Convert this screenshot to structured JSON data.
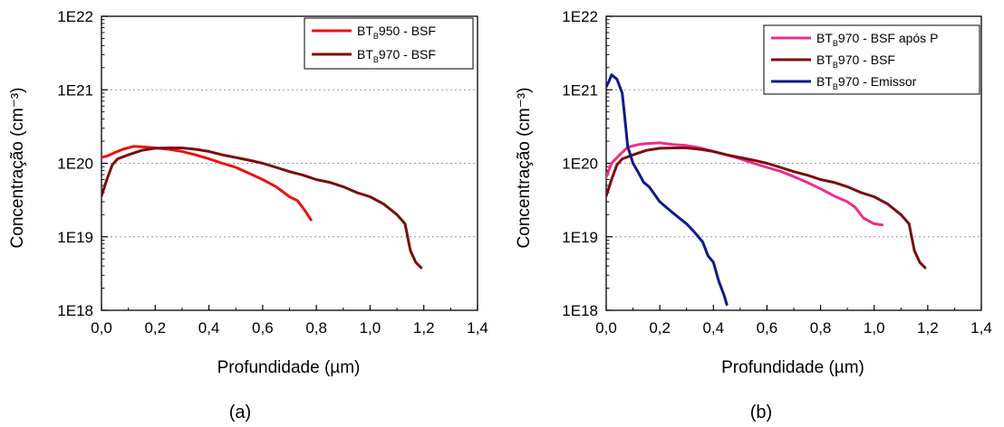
{
  "colors": {
    "bt950_bsf": "#ee1111",
    "bt970_bsf": "#7a0d10",
    "bt970_bsf_apos_p": "#ee2d8c",
    "bt970_emissor": "#0f1a8c",
    "grid": "#999999"
  },
  "chart_data": [
    {
      "type": "line",
      "panel_label": "(a)",
      "xlabel": "Profundidade (µm)",
      "ylabel": "Concentração (cm⁻³)",
      "xlim": [
        0,
        1.4
      ],
      "ylim": [
        1e+18,
        1e+22
      ],
      "yscale": "log",
      "grid": "horizontal dotted",
      "legend_position": "top-right",
      "x_ticks": [
        "0,0",
        "0,2",
        "0,4",
        "0,6",
        "0,8",
        "1,0",
        "1,2",
        "1,4"
      ],
      "y_ticks": [
        "1E18",
        "1E19",
        "1E20",
        "1E21",
        "1E22"
      ],
      "series": [
        {
          "name": "BT_B950 - BSF",
          "legend_main": "BT",
          "legend_sub": "B",
          "legend_rest": "950 - BSF",
          "color_key": "bt950_bsf",
          "points": [
            [
              0.0,
              1.2e+20
            ],
            [
              0.02,
              1.25e+20
            ],
            [
              0.05,
              1.4e+20
            ],
            [
              0.08,
              1.55e+20
            ],
            [
              0.12,
              1.7e+20
            ],
            [
              0.15,
              1.68e+20
            ],
            [
              0.2,
              1.62e+20
            ],
            [
              0.25,
              1.55e+20
            ],
            [
              0.3,
              1.45e+20
            ],
            [
              0.35,
              1.3e+20
            ],
            [
              0.4,
              1.15e+20
            ],
            [
              0.45,
              1e+20
            ],
            [
              0.5,
              8.8e+19
            ],
            [
              0.55,
              7.3e+19
            ],
            [
              0.6,
              6e+19
            ],
            [
              0.65,
              4.8e+19
            ],
            [
              0.7,
              3.5e+19
            ],
            [
              0.73,
              3.1e+19
            ],
            [
              0.76,
              2.2e+19
            ],
            [
              0.78,
              1.7e+19
            ]
          ]
        },
        {
          "name": "BT_B970 - BSF",
          "legend_main": "BT",
          "legend_sub": "B",
          "legend_rest": "970 - BSF",
          "color_key": "bt970_bsf",
          "points": [
            [
              0.0,
              3.6e+19
            ],
            [
              0.02,
              6e+19
            ],
            [
              0.04,
              9.5e+19
            ],
            [
              0.06,
              1.15e+20
            ],
            [
              0.1,
              1.3e+20
            ],
            [
              0.15,
              1.5e+20
            ],
            [
              0.2,
              1.6e+20
            ],
            [
              0.25,
              1.62e+20
            ],
            [
              0.3,
              1.62e+20
            ],
            [
              0.35,
              1.55e+20
            ],
            [
              0.4,
              1.45e+20
            ],
            [
              0.45,
              1.3e+20
            ],
            [
              0.5,
              1.2e+20
            ],
            [
              0.55,
              1.1e+20
            ],
            [
              0.6,
              1e+20
            ],
            [
              0.65,
              8.8e+19
            ],
            [
              0.7,
              7.7e+19
            ],
            [
              0.75,
              6.9e+19
            ],
            [
              0.8,
              6e+19
            ],
            [
              0.85,
              5.5e+19
            ],
            [
              0.9,
              4.8e+19
            ],
            [
              0.95,
              4e+19
            ],
            [
              1.0,
              3.5e+19
            ],
            [
              1.05,
              2.8e+19
            ],
            [
              1.1,
              2e+19
            ],
            [
              1.13,
              1.5e+19
            ],
            [
              1.15,
              6.5e+18
            ],
            [
              1.17,
              4.5e+18
            ],
            [
              1.19,
              3.8e+18
            ]
          ]
        }
      ]
    },
    {
      "type": "line",
      "panel_label": "(b)",
      "xlabel": "Profundidade (µm)",
      "ylabel": "Concentração (cm⁻³)",
      "xlim": [
        0,
        1.4
      ],
      "ylim": [
        1e+18,
        1e+22
      ],
      "yscale": "log",
      "grid": "horizontal dotted",
      "legend_position": "top-right",
      "x_ticks": [
        "0,0",
        "0,2",
        "0,4",
        "0,6",
        "0,8",
        "1,0",
        "1,2",
        "1,4"
      ],
      "y_ticks": [
        "1E18",
        "1E19",
        "1E20",
        "1E21",
        "1E22"
      ],
      "series": [
        {
          "name": "BT_B970 - BSF após P",
          "legend_main": "BT",
          "legend_sub": "B",
          "legend_rest": "970 - BSF após P",
          "color_key": "bt970_bsf_apos_p",
          "points": [
            [
              0.0,
              6.5e+19
            ],
            [
              0.02,
              1e+20
            ],
            [
              0.05,
              1.3e+20
            ],
            [
              0.08,
              1.65e+20
            ],
            [
              0.12,
              1.8e+20
            ],
            [
              0.15,
              1.85e+20
            ],
            [
              0.2,
              1.9e+20
            ],
            [
              0.25,
              1.8e+20
            ],
            [
              0.3,
              1.75e+20
            ],
            [
              0.35,
              1.62e+20
            ],
            [
              0.4,
              1.45e+20
            ],
            [
              0.45,
              1.3e+20
            ],
            [
              0.5,
              1.15e+20
            ],
            [
              0.55,
              1e+20
            ],
            [
              0.6,
              8.8e+19
            ],
            [
              0.65,
              7.8e+19
            ],
            [
              0.7,
              6.6e+19
            ],
            [
              0.75,
              5.5e+19
            ],
            [
              0.8,
              4.5e+19
            ],
            [
              0.85,
              3.6e+19
            ],
            [
              0.9,
              3e+19
            ],
            [
              0.93,
              2.5e+19
            ],
            [
              0.96,
              1.8e+19
            ],
            [
              1.0,
              1.5e+19
            ],
            [
              1.03,
              1.45e+19
            ]
          ]
        },
        {
          "name": "BT_B970 - BSF",
          "legend_main": "BT",
          "legend_sub": "B",
          "legend_rest": "970 - BSF",
          "color_key": "bt970_bsf",
          "points": [
            [
              0.0,
              3.6e+19
            ],
            [
              0.02,
              6e+19
            ],
            [
              0.04,
              9.5e+19
            ],
            [
              0.06,
              1.15e+20
            ],
            [
              0.1,
              1.3e+20
            ],
            [
              0.15,
              1.5e+20
            ],
            [
              0.2,
              1.6e+20
            ],
            [
              0.25,
              1.62e+20
            ],
            [
              0.3,
              1.62e+20
            ],
            [
              0.35,
              1.55e+20
            ],
            [
              0.4,
              1.45e+20
            ],
            [
              0.45,
              1.3e+20
            ],
            [
              0.5,
              1.2e+20
            ],
            [
              0.55,
              1.1e+20
            ],
            [
              0.6,
              1e+20
            ],
            [
              0.65,
              8.8e+19
            ],
            [
              0.7,
              7.7e+19
            ],
            [
              0.75,
              6.9e+19
            ],
            [
              0.8,
              6e+19
            ],
            [
              0.85,
              5.5e+19
            ],
            [
              0.9,
              4.8e+19
            ],
            [
              0.95,
              4e+19
            ],
            [
              1.0,
              3.5e+19
            ],
            [
              1.05,
              2.8e+19
            ],
            [
              1.1,
              2e+19
            ],
            [
              1.13,
              1.5e+19
            ],
            [
              1.15,
              6.5e+18
            ],
            [
              1.17,
              4.5e+18
            ],
            [
              1.19,
              3.8e+18
            ]
          ]
        },
        {
          "name": "BT_B970 - Emissor",
          "legend_main": "BT",
          "legend_sub": "B",
          "legend_rest": "970 - Emissor",
          "color_key": "bt970_emissor",
          "points": [
            [
              0.0,
              1.1e+21
            ],
            [
              0.01,
              1.3e+21
            ],
            [
              0.02,
              1.6e+21
            ],
            [
              0.04,
              1.4e+21
            ],
            [
              0.06,
              9e+20
            ],
            [
              0.07,
              4e+20
            ],
            [
              0.08,
              1.7e+20
            ],
            [
              0.1,
              1e+20
            ],
            [
              0.12,
              7.5e+19
            ],
            [
              0.14,
              5.5e+19
            ],
            [
              0.16,
              4.8e+19
            ],
            [
              0.18,
              3.8e+19
            ],
            [
              0.2,
              3e+19
            ],
            [
              0.25,
              2.1e+19
            ],
            [
              0.3,
              1.5e+19
            ],
            [
              0.33,
              1.15e+19
            ],
            [
              0.36,
              8.5e+18
            ],
            [
              0.38,
              5.5e+18
            ],
            [
              0.4,
              4.5e+18
            ],
            [
              0.42,
              2.5e+18
            ],
            [
              0.44,
              1.6e+18
            ],
            [
              0.45,
              1.2e+18
            ]
          ]
        }
      ]
    }
  ]
}
